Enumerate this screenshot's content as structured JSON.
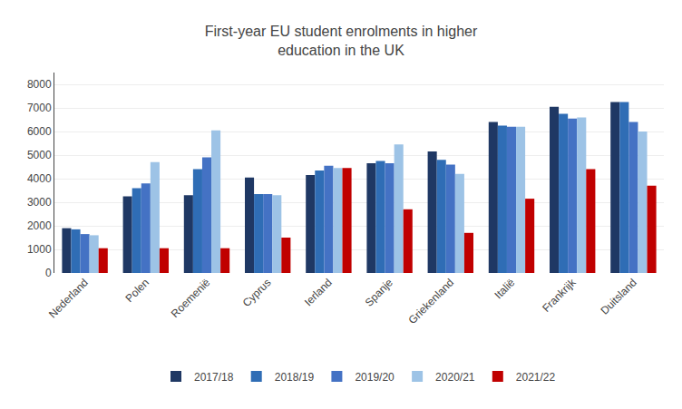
{
  "chart_data": {
    "type": "bar",
    "title": "First-year EU student enrolments in higher\neducation in the UK",
    "categories": [
      "Nederland",
      "Polen",
      "Roemenië",
      "Cyprus",
      "Ierland",
      "Spanje",
      "Griekenland",
      "Italië",
      "Frankrijk",
      "Duitsland"
    ],
    "series": [
      {
        "name": "2017/18",
        "color": "#1F3864",
        "values": [
          1900,
          3250,
          3300,
          4050,
          4150,
          4650,
          5150,
          6400,
          7050,
          7250
        ]
      },
      {
        "name": "2018/19",
        "color": "#2F6DB5",
        "values": [
          1850,
          3600,
          4400,
          3350,
          4350,
          4750,
          4800,
          6250,
          6750,
          7250
        ]
      },
      {
        "name": "2019/20",
        "color": "#4472C4",
        "values": [
          1650,
          3800,
          4900,
          3350,
          4550,
          4650,
          4600,
          6200,
          6550,
          6400
        ]
      },
      {
        "name": "2020/21",
        "color": "#9DC3E6",
        "values": [
          1600,
          4700,
          6050,
          3300,
          4450,
          5450,
          4200,
          6200,
          6600,
          6000
        ]
      },
      {
        "name": "2021/22",
        "color": "#C00000",
        "values": [
          1050,
          1050,
          1050,
          1500,
          4450,
          2700,
          1700,
          3150,
          4400,
          3700
        ]
      }
    ],
    "ylim": [
      0,
      8500
    ],
    "yticks": [
      0,
      1000,
      2000,
      3000,
      4000,
      5000,
      6000,
      7000,
      8000
    ],
    "grid": true,
    "legend": "bottom"
  }
}
